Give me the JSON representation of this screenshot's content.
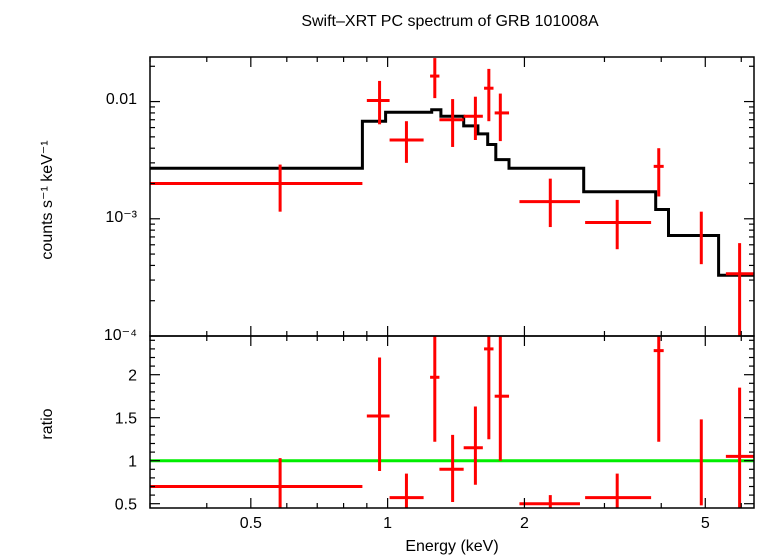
{
  "chart_data": [
    {
      "type": "scatter",
      "title": "Swift–XRT PC spectrum of GRB 101008A",
      "ylabel": "counts s⁻¹ keV⁻¹",
      "yscale": "log",
      "xscale": "log",
      "xlim": [
        0.3,
        6.4
      ],
      "ylim": [
        0.0001,
        0.024
      ],
      "ytick_labels": [
        "0.01",
        "10⁻³",
        "10⁻⁴"
      ],
      "colors": {
        "data": "#ff0000",
        "model": "#000000"
      },
      "series": [
        {
          "points": [
            {
              "x": 0.58,
              "xlo": 0.3,
              "xhi": 0.88,
              "y": 0.002,
              "ylo": 0.00115,
              "yhi": 0.0029
            },
            {
              "x": 0.96,
              "xlo": 0.9,
              "xhi": 1.01,
              "y": 0.0102,
              "ylo": 0.0064,
              "yhi": 0.015
            },
            {
              "x": 1.1,
              "xlo": 1.01,
              "xhi": 1.2,
              "y": 0.0047,
              "ylo": 0.003,
              "yhi": 0.0068
            },
            {
              "x": 1.27,
              "xlo": 1.24,
              "xhi": 1.3,
              "y": 0.0165,
              "ylo": 0.0107,
              "yhi": 0.0235
            },
            {
              "x": 1.39,
              "xlo": 1.3,
              "xhi": 1.47,
              "y": 0.007,
              "ylo": 0.0041,
              "yhi": 0.0105
            },
            {
              "x": 1.56,
              "xlo": 1.47,
              "xhi": 1.62,
              "y": 0.0075,
              "ylo": 0.0047,
              "yhi": 0.011
            },
            {
              "x": 1.67,
              "xlo": 1.63,
              "xhi": 1.71,
              "y": 0.013,
              "ylo": 0.0068,
              "yhi": 0.019
            },
            {
              "x": 1.77,
              "xlo": 1.72,
              "xhi": 1.85,
              "y": 0.008,
              "ylo": 0.0046,
              "yhi": 0.0117
            },
            {
              "x": 2.28,
              "xlo": 1.95,
              "xhi": 2.65,
              "y": 0.0014,
              "ylo": 0.00085,
              "yhi": 0.0022
            },
            {
              "x": 3.2,
              "xlo": 2.72,
              "xhi": 3.8,
              "y": 0.00093,
              "ylo": 0.00055,
              "yhi": 0.00145
            },
            {
              "x": 3.95,
              "xlo": 3.85,
              "xhi": 4.05,
              "y": 0.0028,
              "ylo": 0.00155,
              "yhi": 0.004
            },
            {
              "x": 4.9,
              "xlo": 4.9,
              "xhi": 4.9,
              "y": 0.00072,
              "ylo": 0.00041,
              "yhi": 0.00115
            },
            {
              "x": 5.95,
              "xlo": 5.55,
              "xhi": 6.4,
              "y": 0.00034,
              "ylo": 0.0001,
              "yhi": 0.00062
            }
          ]
        }
      ],
      "model_steps": {
        "edges": [
          0.3,
          0.88,
          0.99,
          1.25,
          1.31,
          1.47,
          1.58,
          1.66,
          1.73,
          1.85,
          2.7,
          3.89,
          4.15,
          5.35,
          6.4
        ],
        "values": [
          0.0027,
          0.0068,
          0.0081,
          0.0085,
          0.0075,
          0.0062,
          0.0053,
          0.0043,
          0.0032,
          0.0027,
          0.0017,
          0.0012,
          0.00072,
          0.00033
        ]
      }
    },
    {
      "type": "scatter",
      "ylabel": "ratio",
      "xlabel": "Energy (keV)",
      "xscale": "log",
      "yscale": "linear",
      "xlim": [
        0.3,
        6.4
      ],
      "ylim": [
        0.45,
        2.45
      ],
      "xtick_labels": [
        "0.5",
        "1",
        "2",
        "5"
      ],
      "xtick_values": [
        0.5,
        1,
        2,
        5
      ],
      "ytick_labels": [
        "0.5",
        "1",
        "1.5",
        "2"
      ],
      "ytick_values": [
        0.5,
        1,
        1.5,
        2
      ],
      "reference_line": 1,
      "colors": {
        "data": "#ff0000",
        "reference": "#00ee00"
      },
      "series": [
        {
          "points": [
            {
              "x": 0.58,
              "xlo": 0.3,
              "xhi": 0.88,
              "y": 0.7,
              "ylo": 0.38,
              "yhi": 1.03
            },
            {
              "x": 0.96,
              "xlo": 0.9,
              "xhi": 1.01,
              "y": 1.52,
              "ylo": 0.88,
              "yhi": 2.2
            },
            {
              "x": 1.1,
              "xlo": 1.01,
              "xhi": 1.2,
              "y": 0.57,
              "ylo": 0.3,
              "yhi": 0.85
            },
            {
              "x": 1.27,
              "xlo": 1.24,
              "xhi": 1.3,
              "y": 1.97,
              "ylo": 1.22,
              "yhi": 2.75
            },
            {
              "x": 1.39,
              "xlo": 1.3,
              "xhi": 1.47,
              "y": 0.9,
              "ylo": 0.52,
              "yhi": 1.3
            },
            {
              "x": 1.56,
              "xlo": 1.47,
              "xhi": 1.62,
              "y": 1.15,
              "ylo": 0.72,
              "yhi": 1.63
            },
            {
              "x": 1.67,
              "xlo": 1.63,
              "xhi": 1.71,
              "y": 2.3,
              "ylo": 1.25,
              "yhi": 2.95
            },
            {
              "x": 1.77,
              "xlo": 1.72,
              "xhi": 1.85,
              "y": 1.75,
              "ylo": 1.0,
              "yhi": 2.5
            },
            {
              "x": 2.28,
              "xlo": 1.95,
              "xhi": 2.65,
              "y": 0.5,
              "ylo": 0.3,
              "yhi": 0.6
            },
            {
              "x": 3.2,
              "xlo": 2.72,
              "xhi": 3.8,
              "y": 0.57,
              "ylo": 0.33,
              "yhi": 0.85
            },
            {
              "x": 3.95,
              "xlo": 3.85,
              "xhi": 4.05,
              "y": 2.28,
              "ylo": 1.22,
              "yhi": 3.3
            },
            {
              "x": 4.9,
              "xlo": 4.9,
              "xhi": 4.9,
              "y": 0.98,
              "ylo": 0.48,
              "yhi": 1.48
            },
            {
              "x": 5.95,
              "xlo": 5.55,
              "xhi": 6.4,
              "y": 1.05,
              "ylo": 0.28,
              "yhi": 1.85
            }
          ]
        }
      ]
    }
  ]
}
